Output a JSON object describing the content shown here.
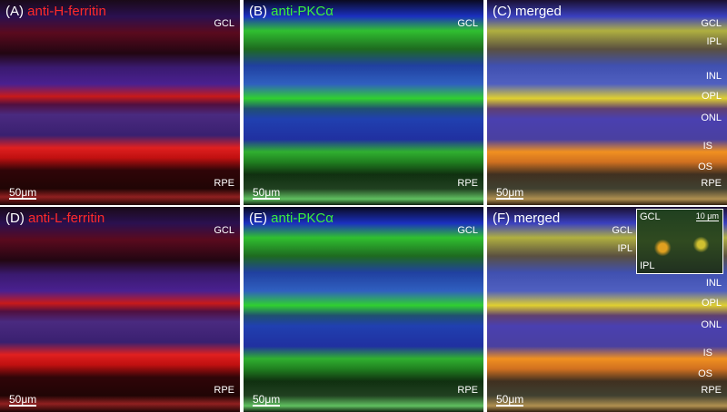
{
  "panels": [
    {
      "label": "(A)",
      "title": "anti-H-ferritin",
      "layers": [
        "GCL",
        "RPE"
      ],
      "scale_bar": "50μm"
    },
    {
      "label": "(B)",
      "title": "anti-PKCα",
      "layers": [
        "GCL",
        "RPE"
      ],
      "scale_bar": "50μm"
    },
    {
      "label": "(C)",
      "title": "merged",
      "layers": [
        "GCL",
        "IPL",
        "INL",
        "OPL",
        "ONL",
        "IS",
        "OS",
        "RPE"
      ],
      "scale_bar": "50μm"
    },
    {
      "label": "(D)",
      "title": "anti-L-ferritin",
      "layers": [
        "GCL",
        "RPE"
      ],
      "scale_bar": "50μm"
    },
    {
      "label": "(E)",
      "title": "anti-PKCα",
      "layers": [
        "GCL",
        "RPE"
      ],
      "scale_bar": "50μm"
    },
    {
      "label": "(F)",
      "title": "merged",
      "layers": [
        "GCL",
        "IPL",
        "INL",
        "OPL",
        "ONL",
        "IS",
        "OS",
        "RPE"
      ],
      "scale_bar": "50μm",
      "inset": {
        "layers": [
          "GCL",
          "IPL"
        ],
        "scale_bar": "10 μm"
      }
    }
  ]
}
